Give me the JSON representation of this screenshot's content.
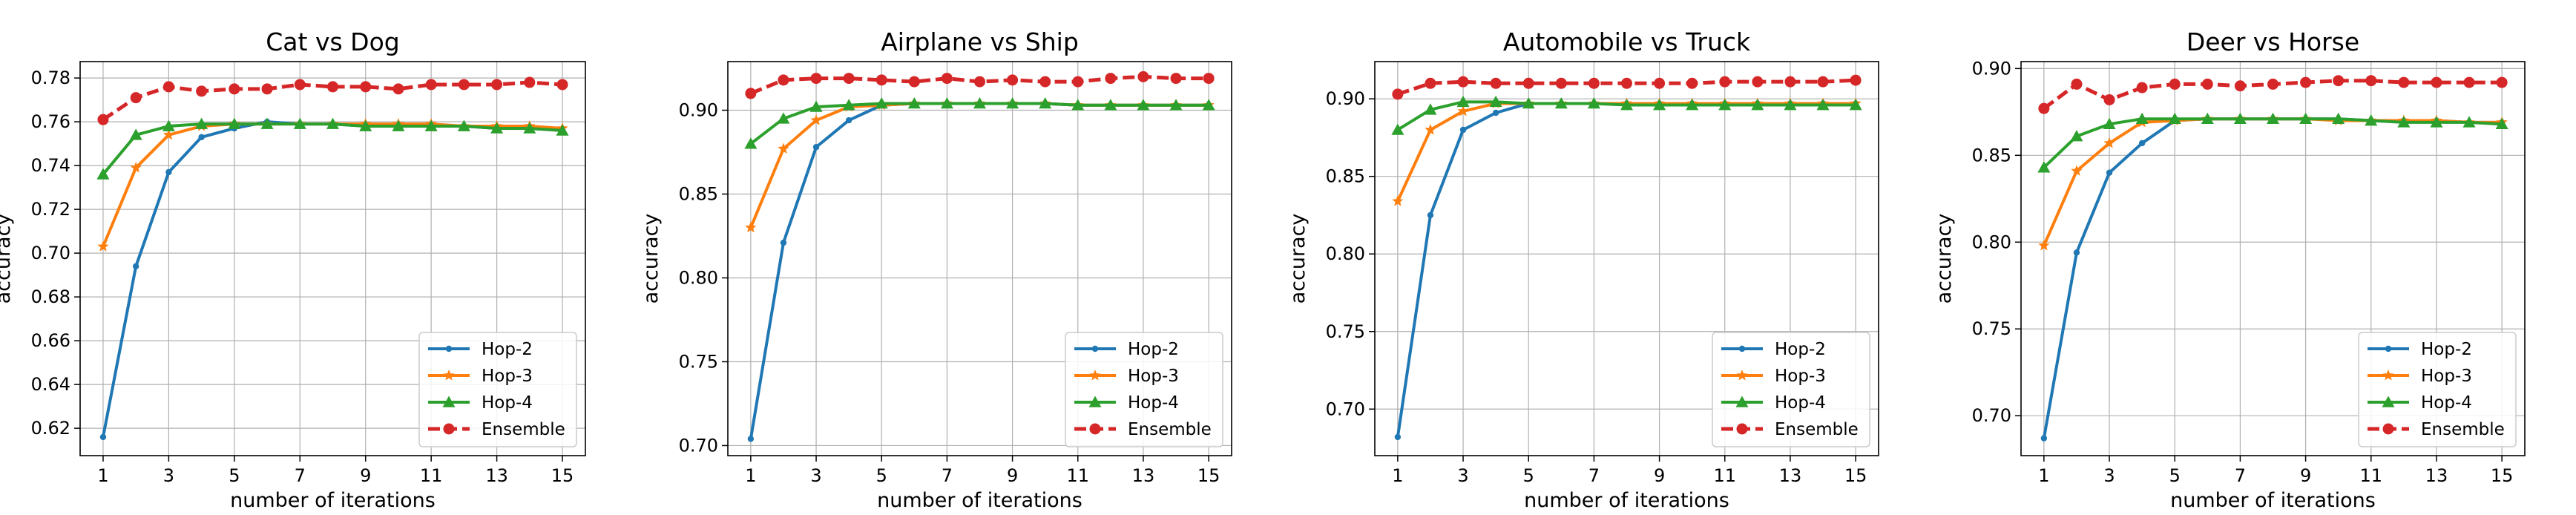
{
  "chart_data": [
    {
      "type": "line",
      "title": "Cat vs Dog",
      "xlabel": "number of iterations",
      "ylabel": "accuracy",
      "x": [
        1,
        2,
        3,
        4,
        5,
        6,
        7,
        8,
        9,
        10,
        11,
        12,
        13,
        14,
        15
      ],
      "xticks": [
        "1",
        "3",
        "5",
        "7",
        "9",
        "11",
        "13",
        "15"
      ],
      "yticks": [
        "0.62",
        "0.64",
        "0.66",
        "0.68",
        "0.70",
        "0.72",
        "0.74",
        "0.76",
        "0.78"
      ],
      "ylim": [
        0.6075,
        0.7875
      ],
      "xlim": [
        0.3,
        15.7
      ],
      "grid": true,
      "legend_position": "lower right",
      "series": [
        {
          "name": "Hop-2",
          "color": "#1f77b4",
          "marker": "point",
          "linestyle": "solid",
          "values": [
            0.616,
            0.694,
            0.737,
            0.753,
            0.757,
            0.76,
            0.759,
            0.759,
            0.758,
            0.758,
            0.758,
            0.758,
            0.757,
            0.757,
            0.756
          ]
        },
        {
          "name": "Hop-3",
          "color": "#ff7f0e",
          "marker": "star",
          "linestyle": "solid",
          "values": [
            0.703,
            0.739,
            0.754,
            0.758,
            0.759,
            0.759,
            0.759,
            0.759,
            0.759,
            0.759,
            0.759,
            0.758,
            0.758,
            0.758,
            0.757
          ]
        },
        {
          "name": "Hop-4",
          "color": "#2ca02c",
          "marker": "triangle",
          "linestyle": "solid",
          "values": [
            0.736,
            0.754,
            0.758,
            0.759,
            0.759,
            0.759,
            0.759,
            0.759,
            0.758,
            0.758,
            0.758,
            0.758,
            0.757,
            0.757,
            0.756
          ]
        },
        {
          "name": "Ensemble",
          "color": "#d62728",
          "marker": "circle",
          "linestyle": "dashed",
          "values": [
            0.761,
            0.771,
            0.776,
            0.774,
            0.775,
            0.775,
            0.777,
            0.776,
            0.776,
            0.775,
            0.777,
            0.777,
            0.777,
            0.778,
            0.777
          ]
        }
      ]
    },
    {
      "type": "line",
      "title": "Airplane vs Ship",
      "xlabel": "number of iterations",
      "ylabel": "accuracy",
      "x": [
        1,
        2,
        3,
        4,
        5,
        6,
        7,
        8,
        9,
        10,
        11,
        12,
        13,
        14,
        15
      ],
      "xticks": [
        "1",
        "3",
        "5",
        "7",
        "9",
        "11",
        "13",
        "15"
      ],
      "yticks": [
        "0.70",
        "0.75",
        "0.80",
        "0.85",
        "0.90"
      ],
      "ylim": [
        0.694,
        0.929
      ],
      "xlim": [
        0.3,
        15.7
      ],
      "grid": true,
      "legend_position": "lower right",
      "series": [
        {
          "name": "Hop-2",
          "color": "#1f77b4",
          "marker": "point",
          "linestyle": "solid",
          "values": [
            0.704,
            0.821,
            0.878,
            0.894,
            0.903,
            0.904,
            0.904,
            0.904,
            0.904,
            0.904,
            0.903,
            0.903,
            0.903,
            0.903,
            0.903
          ]
        },
        {
          "name": "Hop-3",
          "color": "#ff7f0e",
          "marker": "star",
          "linestyle": "solid",
          "values": [
            0.83,
            0.877,
            0.894,
            0.902,
            0.903,
            0.904,
            0.904,
            0.904,
            0.904,
            0.904,
            0.903,
            0.903,
            0.903,
            0.903,
            0.903
          ]
        },
        {
          "name": "Hop-4",
          "color": "#2ca02c",
          "marker": "triangle",
          "linestyle": "solid",
          "values": [
            0.88,
            0.895,
            0.902,
            0.903,
            0.904,
            0.904,
            0.904,
            0.904,
            0.904,
            0.904,
            0.903,
            0.903,
            0.903,
            0.903,
            0.903
          ]
        },
        {
          "name": "Ensemble",
          "color": "#d62728",
          "marker": "circle",
          "linestyle": "dashed",
          "values": [
            0.91,
            0.918,
            0.919,
            0.919,
            0.918,
            0.917,
            0.919,
            0.917,
            0.918,
            0.917,
            0.917,
            0.919,
            0.92,
            0.919,
            0.919
          ]
        }
      ]
    },
    {
      "type": "line",
      "title": "Automobile vs Truck",
      "xlabel": "number of iterations",
      "ylabel": "accuracy",
      "x": [
        1,
        2,
        3,
        4,
        5,
        6,
        7,
        8,
        9,
        10,
        11,
        12,
        13,
        14,
        15
      ],
      "xticks": [
        "1",
        "3",
        "5",
        "7",
        "9",
        "11",
        "13",
        "15"
      ],
      "yticks": [
        "0.70",
        "0.75",
        "0.80",
        "0.85",
        "0.90"
      ],
      "ylim": [
        0.67,
        0.924
      ],
      "xlim": [
        0.3,
        15.7
      ],
      "grid": true,
      "legend_position": "lower right",
      "series": [
        {
          "name": "Hop-2",
          "color": "#1f77b4",
          "marker": "point",
          "linestyle": "solid",
          "values": [
            0.682,
            0.825,
            0.88,
            0.891,
            0.897,
            0.897,
            0.897,
            0.897,
            0.897,
            0.897,
            0.897,
            0.897,
            0.897,
            0.897,
            0.897
          ]
        },
        {
          "name": "Hop-3",
          "color": "#ff7f0e",
          "marker": "star",
          "linestyle": "solid",
          "values": [
            0.834,
            0.88,
            0.892,
            0.897,
            0.897,
            0.897,
            0.897,
            0.897,
            0.897,
            0.897,
            0.897,
            0.897,
            0.897,
            0.897,
            0.897
          ]
        },
        {
          "name": "Hop-4",
          "color": "#2ca02c",
          "marker": "triangle",
          "linestyle": "solid",
          "values": [
            0.88,
            0.893,
            0.898,
            0.898,
            0.897,
            0.897,
            0.897,
            0.896,
            0.896,
            0.896,
            0.896,
            0.896,
            0.896,
            0.896,
            0.896
          ]
        },
        {
          "name": "Ensemble",
          "color": "#d62728",
          "marker": "circle",
          "linestyle": "dashed",
          "values": [
            0.903,
            0.91,
            0.911,
            0.91,
            0.91,
            0.91,
            0.91,
            0.91,
            0.91,
            0.91,
            0.911,
            0.911,
            0.911,
            0.911,
            0.912
          ]
        }
      ]
    },
    {
      "type": "line",
      "title": "Deer vs Horse",
      "xlabel": "number of iterations",
      "ylabel": "accuracy",
      "x": [
        1,
        2,
        3,
        4,
        5,
        6,
        7,
        8,
        9,
        10,
        11,
        12,
        13,
        14,
        15
      ],
      "xticks": [
        "1",
        "3",
        "5",
        "7",
        "9",
        "11",
        "13",
        "15"
      ],
      "yticks": [
        "0.70",
        "0.75",
        "0.80",
        "0.85",
        "0.90"
      ],
      "ylim": [
        0.677,
        0.904
      ],
      "xlim": [
        0.3,
        15.7
      ],
      "grid": true,
      "legend_position": "lower right",
      "series": [
        {
          "name": "Hop-2",
          "color": "#1f77b4",
          "marker": "point",
          "linestyle": "solid",
          "values": [
            0.687,
            0.794,
            0.84,
            0.857,
            0.87,
            0.871,
            0.871,
            0.871,
            0.871,
            0.871,
            0.87,
            0.87,
            0.87,
            0.869,
            0.869
          ]
        },
        {
          "name": "Hop-3",
          "color": "#ff7f0e",
          "marker": "star",
          "linestyle": "solid",
          "values": [
            0.798,
            0.841,
            0.857,
            0.869,
            0.87,
            0.871,
            0.871,
            0.871,
            0.871,
            0.87,
            0.87,
            0.87,
            0.87,
            0.869,
            0.869
          ]
        },
        {
          "name": "Hop-4",
          "color": "#2ca02c",
          "marker": "triangle",
          "linestyle": "solid",
          "values": [
            0.843,
            0.861,
            0.868,
            0.871,
            0.871,
            0.871,
            0.871,
            0.871,
            0.871,
            0.871,
            0.87,
            0.869,
            0.869,
            0.869,
            0.868
          ]
        },
        {
          "name": "Ensemble",
          "color": "#d62728",
          "marker": "circle",
          "linestyle": "dashed",
          "values": [
            0.877,
            0.891,
            0.882,
            0.889,
            0.891,
            0.891,
            0.89,
            0.891,
            0.892,
            0.893,
            0.893,
            0.892,
            0.892,
            0.892,
            0.892
          ]
        }
      ]
    }
  ]
}
